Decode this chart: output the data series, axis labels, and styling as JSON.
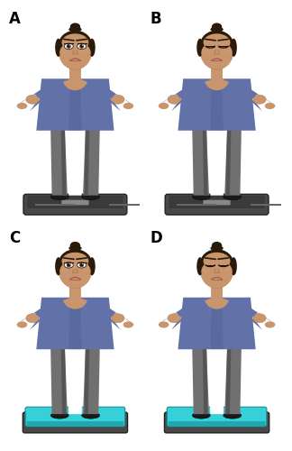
{
  "figure_width": 3.24,
  "figure_height": 5.0,
  "dpi": 100,
  "background_color": "#ffffff",
  "labels": [
    "A",
    "B",
    "C",
    "D"
  ],
  "label_fontsize": 12,
  "label_fontweight": "bold",
  "skin_color": "#c8956c",
  "skin_shadow": "#b07a50",
  "shirt_color": "#6272a8",
  "shirt_dark": "#4a5888",
  "pants_color": "#707070",
  "pants_dark": "#555555",
  "hair_color": "#2a1a0a",
  "shoe_color": "#1a1a1a",
  "plate_body": "#484848",
  "plate_top": "#3a3a3a",
  "plate_rail": "#888888",
  "plate_feet": "#222222",
  "foam_top": "#35d0d8",
  "foam_side": "#20a8b0",
  "foam_border": "#1a8890",
  "lip_color": "#a06050",
  "eye_white": "#f0f0f0",
  "eye_dark": "#1a1010",
  "panel_configs": [
    {
      "eyes_closed": false,
      "foam": false
    },
    {
      "eyes_closed": true,
      "foam": false
    },
    {
      "eyes_closed": false,
      "foam": true
    },
    {
      "eyes_closed": true,
      "foam": true
    }
  ]
}
